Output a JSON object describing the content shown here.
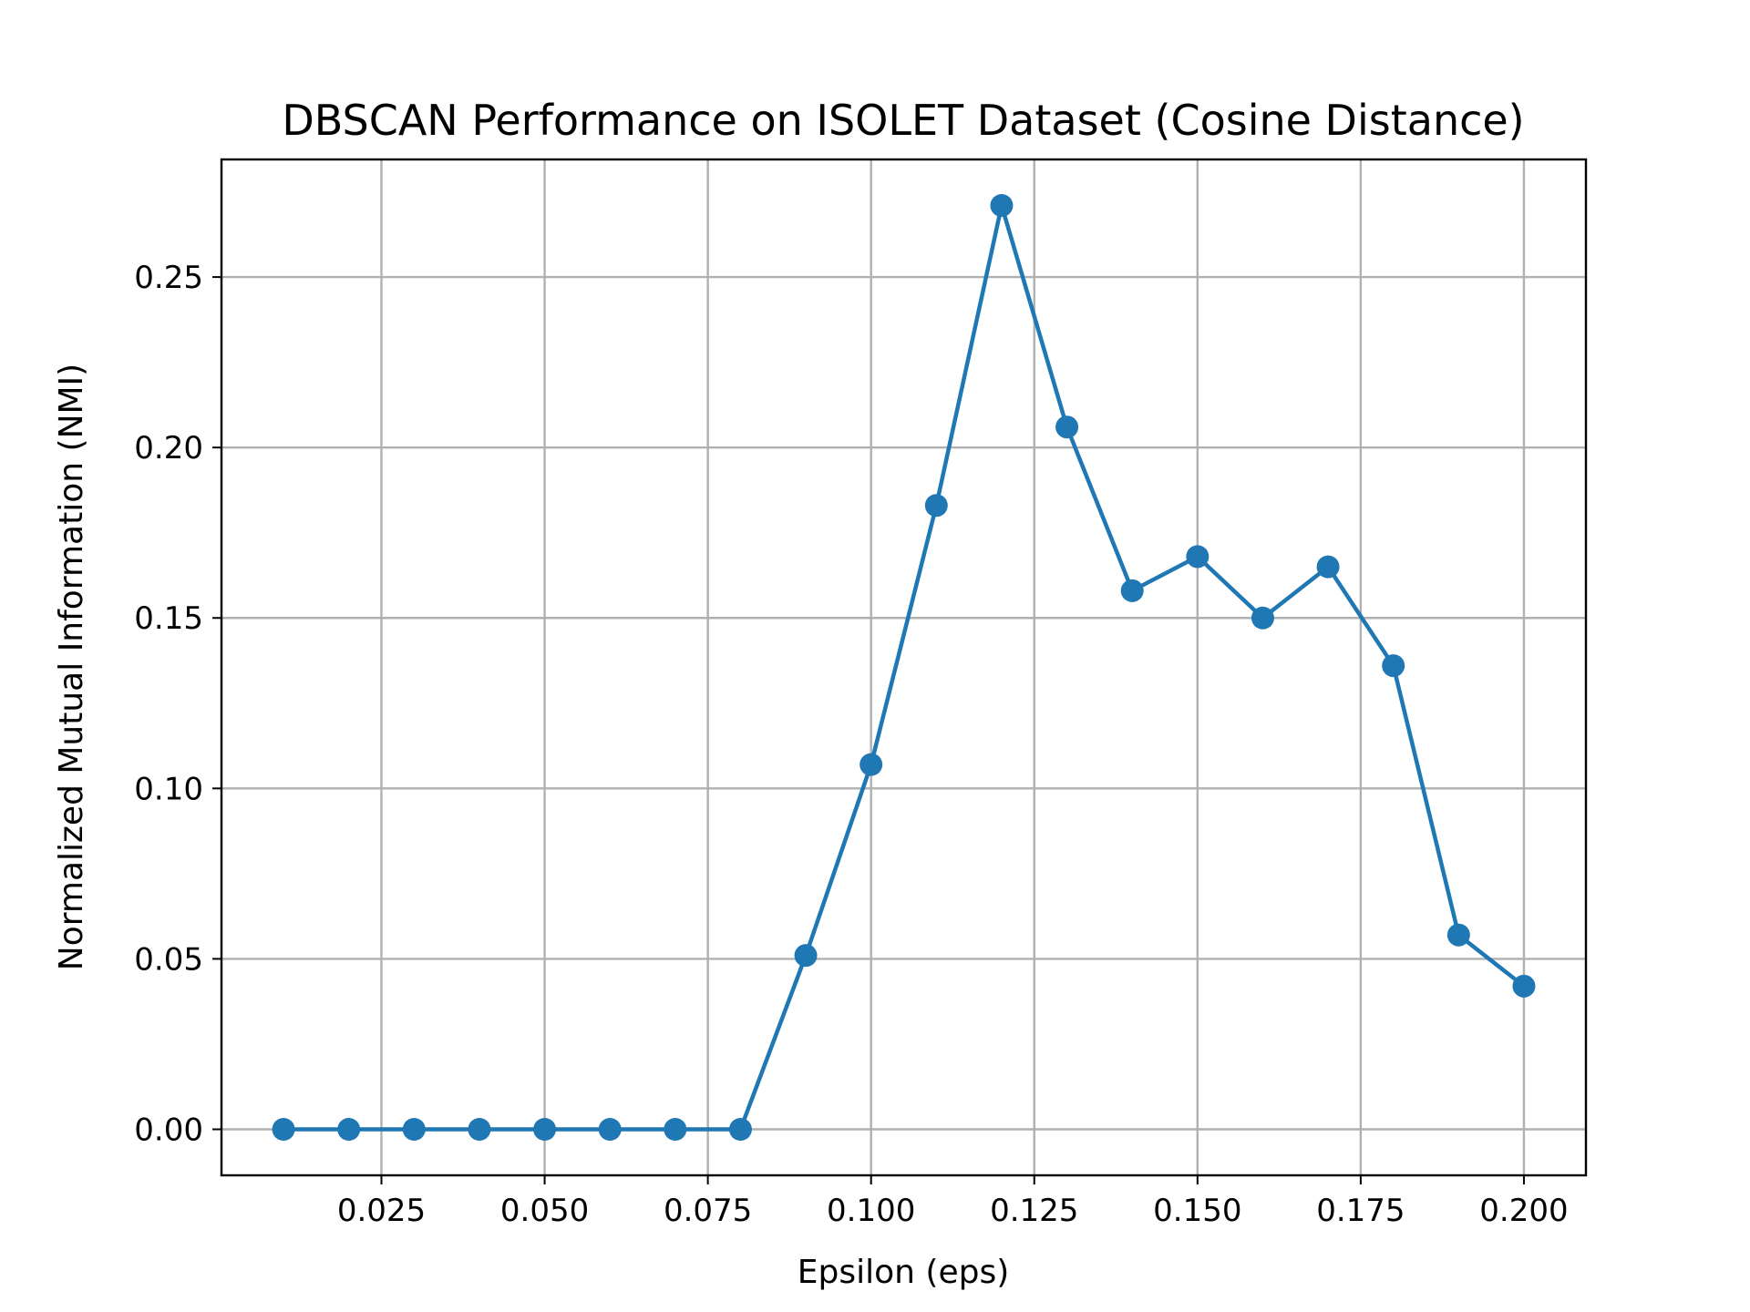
{
  "chart_data": {
    "type": "line",
    "title": "DBSCAN Performance on ISOLET Dataset (Cosine Distance)",
    "xlabel": "Epsilon (eps)",
    "ylabel": "Normalized Mutual Information (NMI)",
    "xlim": [
      0.0005,
      0.2095
    ],
    "ylim": [
      -0.0135,
      0.2845
    ],
    "grid": true,
    "x_ticks": [
      {
        "value": 0.025,
        "label": "0.025"
      },
      {
        "value": 0.05,
        "label": "0.050"
      },
      {
        "value": 0.075,
        "label": "0.075"
      },
      {
        "value": 0.1,
        "label": "0.100"
      },
      {
        "value": 0.125,
        "label": "0.125"
      },
      {
        "value": 0.15,
        "label": "0.150"
      },
      {
        "value": 0.175,
        "label": "0.175"
      },
      {
        "value": 0.2,
        "label": "0.200"
      }
    ],
    "y_ticks": [
      {
        "value": 0.0,
        "label": "0.00"
      },
      {
        "value": 0.05,
        "label": "0.05"
      },
      {
        "value": 0.1,
        "label": "0.10"
      },
      {
        "value": 0.15,
        "label": "0.15"
      },
      {
        "value": 0.2,
        "label": "0.20"
      },
      {
        "value": 0.25,
        "label": "0.25"
      }
    ],
    "series": [
      {
        "name": "NMI",
        "color": "#1f77b4",
        "x": [
          0.01,
          0.02,
          0.03,
          0.04,
          0.05,
          0.06,
          0.07,
          0.08,
          0.09,
          0.1,
          0.11,
          0.12,
          0.13,
          0.14,
          0.15,
          0.16,
          0.17,
          0.18,
          0.19,
          0.2
        ],
        "y": [
          0.0,
          0.0,
          0.0,
          0.0,
          0.0,
          0.0,
          0.0,
          0.0,
          0.051,
          0.107,
          0.183,
          0.271,
          0.206,
          0.158,
          0.168,
          0.15,
          0.165,
          0.136,
          0.057,
          0.042
        ]
      }
    ]
  }
}
